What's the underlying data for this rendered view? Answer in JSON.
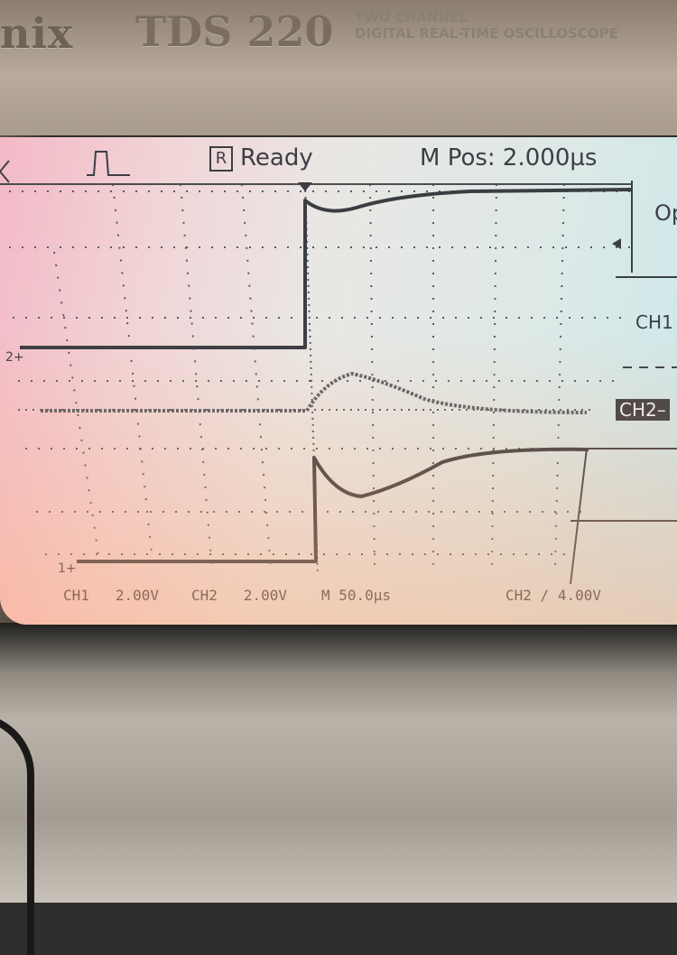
{
  "device": {
    "brand_fragment": "nix",
    "model": "TDS 220",
    "model_subtitle_line1": "TWO CHANNEL",
    "model_subtitle_line2": "DIGITAL REAL-TIME OSCILLOSCOPE"
  },
  "status_bar": {
    "trigger_state_symbol": "R",
    "trigger_state": "Ready",
    "horizontal_position": "M Pos: 2.000µs"
  },
  "readout": {
    "ch1_label": "CH1",
    "ch1_scale": "2.00V",
    "ch2_label": "CH2",
    "ch2_scale": "2.00V",
    "timebase": "M 50.0µs",
    "trigger_source": "CH2",
    "trigger_level": "4.00V"
  },
  "markers": {
    "ch1_marker": "1",
    "ch2_marker": "2"
  },
  "menu": {
    "top_item": "Op",
    "ch1_item": "CH1",
    "ch2_item": "CH2–"
  },
  "colors": {
    "trace": "#3c3f44",
    "grid": "#4a4d52"
  }
}
